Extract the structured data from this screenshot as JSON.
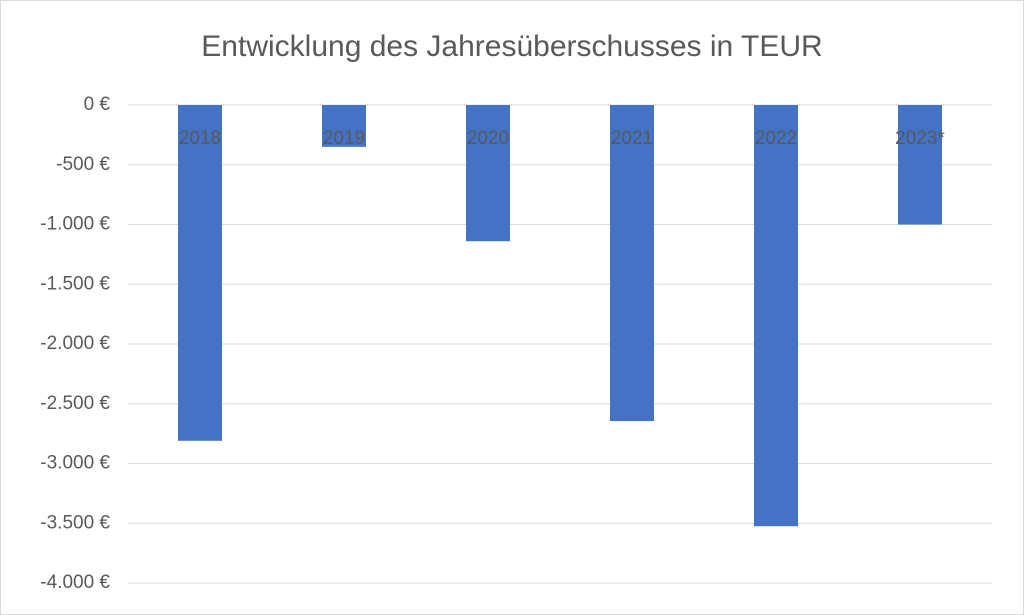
{
  "chart_data": {
    "type": "bar",
    "title": "Entwicklung des Jahresüberschusses in TEUR",
    "categories": [
      "2018",
      "2019",
      "2020",
      "2021",
      "2022",
      "2023*"
    ],
    "values": [
      -2810,
      -350,
      -1140,
      -2645,
      -3525,
      -1000
    ],
    "color": "#4472c4",
    "ylim": [
      -4000,
      0
    ],
    "yticks": [
      {
        "value": 0,
        "label": "0 €"
      },
      {
        "value": -500,
        "label": "-500 €"
      },
      {
        "value": -1000,
        "label": "-1.000 €"
      },
      {
        "value": -1500,
        "label": "-1.500 €"
      },
      {
        "value": -2000,
        "label": "-2.000 €"
      },
      {
        "value": -2500,
        "label": "-2.500 €"
      },
      {
        "value": -3000,
        "label": "-3.000 €"
      },
      {
        "value": -3500,
        "label": "-3.500 €"
      },
      {
        "value": -4000,
        "label": "-4.000 €"
      }
    ],
    "grid": true
  }
}
